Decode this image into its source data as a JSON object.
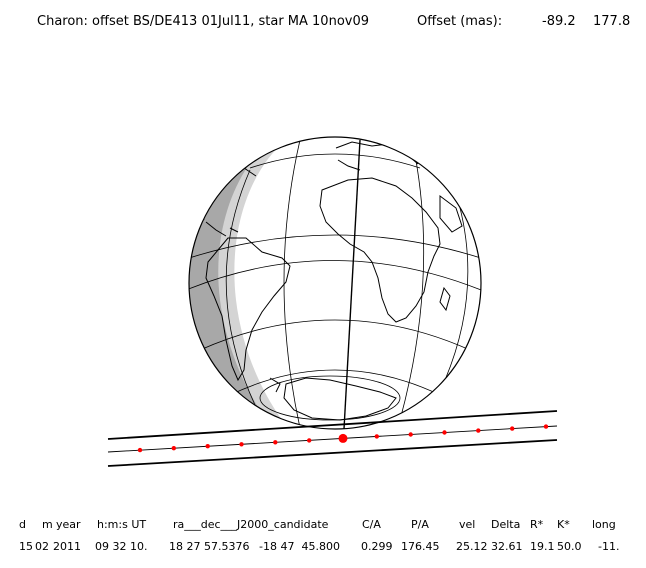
{
  "title": {
    "text": "Charon: offset BS/DE413 01Jul11, star MA 10nov09",
    "offset_label": "Offset (mas):",
    "offset_ra": "-89.2",
    "offset_dec": "177.8"
  },
  "colors": {
    "background": "#ffffff",
    "line": "#000000",
    "night": "#a8a8a8",
    "twilight": "#d4d4d4",
    "chord": "#ff0000",
    "graticule": "#000000"
  },
  "globe": {
    "projection": "orthographic",
    "graticule_step_deg": 30,
    "shadow": "night side on western limb"
  },
  "track": {
    "dots": 13,
    "closest_approach_index": 6,
    "path": "shadow path with two limit lines and centerline"
  },
  "table": {
    "headers": [
      "d",
      "m",
      "year",
      "h:m:s UT",
      "ra___dec___J2000_candidate",
      "C/A",
      "P/A",
      "vel",
      "Delta",
      "R*",
      "K*",
      "long"
    ],
    "values": [
      "15",
      "02",
      "2011",
      "09 32 10.",
      "18 27 57.5376",
      "-18 47  45.800",
      "0.299",
      "176.45",
      "25.12",
      "32.61",
      "19.1",
      "50.0",
      "-11."
    ]
  }
}
